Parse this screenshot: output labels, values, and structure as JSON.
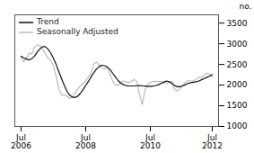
{
  "chart_data": {
    "type": "line",
    "categories": [
      "Jul\n2006",
      null,
      null,
      null,
      null,
      null,
      null,
      null,
      null,
      null,
      null,
      null,
      null,
      null,
      null,
      null,
      null,
      null,
      null,
      null,
      null,
      null,
      null,
      null,
      "Jul\n2008",
      null,
      null,
      null,
      null,
      null,
      null,
      null,
      null,
      null,
      null,
      null,
      null,
      null,
      null,
      null,
      null,
      null,
      null,
      null,
      null,
      null,
      null,
      null,
      "Jul\n2010",
      null,
      null,
      null,
      null,
      null,
      null,
      null,
      null,
      null,
      null,
      null,
      null,
      null,
      null,
      null,
      null,
      null,
      null,
      null,
      null,
      null,
      null,
      "Jul\n2012"
    ],
    "series": [
      {
        "name": "Trend",
        "color": "#111111",
        "values": [
          2700,
          2660,
          2630,
          2610,
          2640,
          2700,
          2800,
          2880,
          2930,
          2930,
          2870,
          2780,
          2650,
          2500,
          2330,
          2160,
          2000,
          1860,
          1760,
          1710,
          1700,
          1730,
          1800,
          1890,
          1990,
          2090,
          2200,
          2300,
          2390,
          2450,
          2480,
          2470,
          2440,
          2380,
          2290,
          2200,
          2110,
          2050,
          2010,
          1990,
          1980,
          1980,
          1980,
          1985,
          1990,
          1985,
          1975,
          1970,
          1970,
          1975,
          1990,
          2010,
          2040,
          2070,
          2100,
          2080,
          2040,
          1990,
          1960,
          1960,
          1980,
          2010,
          2040,
          2060,
          2070,
          2080,
          2100,
          2130,
          2160,
          2190,
          2220,
          2250
        ]
      },
      {
        "name": "Seasonally Adjusted",
        "color": "#bbbbbb",
        "values": [
          2680,
          2560,
          2650,
          2780,
          2750,
          2920,
          2980,
          2950,
          2870,
          2760,
          2650,
          2600,
          2460,
          2220,
          1920,
          1760,
          1760,
          1740,
          1680,
          1710,
          1810,
          1900,
          1980,
          2040,
          2110,
          2200,
          2290,
          2510,
          2560,
          2490,
          2410,
          2390,
          2410,
          2270,
          2100,
          2010,
          1990,
          2060,
          2100,
          2080,
          2060,
          2090,
          2140,
          2080,
          1760,
          1530,
          1870,
          2010,
          2060,
          2090,
          2080,
          2090,
          2080,
          2080,
          2040,
          2080,
          2090,
          1910,
          1860,
          1910,
          2010,
          2060,
          2110,
          2100,
          2100,
          2140,
          2190,
          2190,
          2240,
          2290,
          2270,
          2200
        ]
      }
    ],
    "ylabel": "no.",
    "ylim": [
      1000,
      3700
    ],
    "yticks": [
      1000,
      1500,
      2000,
      2500,
      3000,
      3500
    ],
    "grid": false,
    "legend": "upper left"
  }
}
